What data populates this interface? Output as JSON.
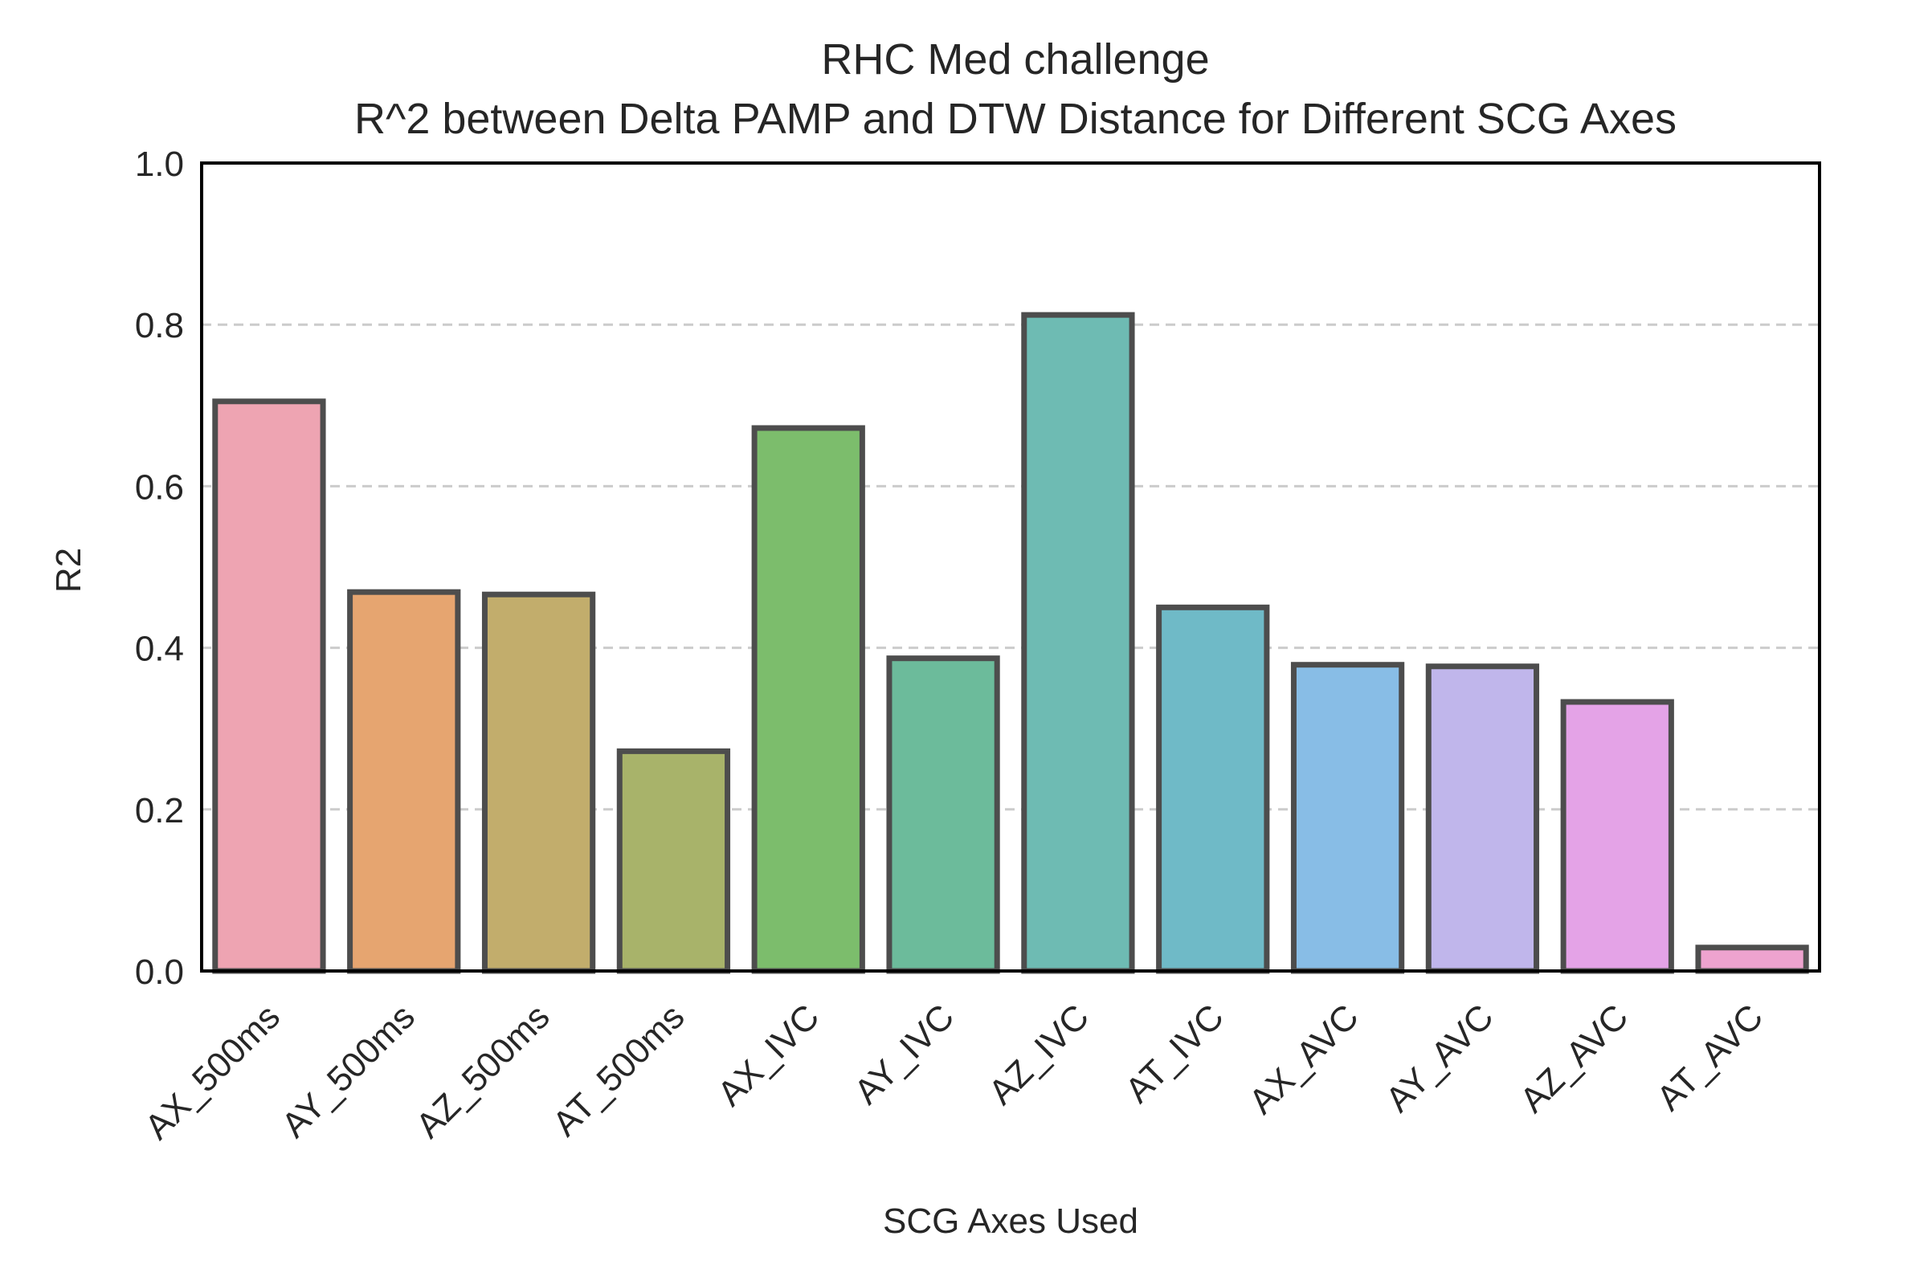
{
  "chart_data": {
    "type": "bar",
    "title": "RHC Med challenge",
    "subtitle": "R^2 between Delta PAMP and DTW Distance for Different SCG Axes",
    "xlabel": "SCG Axes Used",
    "ylabel": "R2",
    "ylim": [
      0,
      1.0
    ],
    "yticks": [
      "0.0",
      "0.2",
      "0.4",
      "0.6",
      "0.8",
      "1.0"
    ],
    "grid": "horizontal dashed",
    "categories": [
      "AX_500ms",
      "AY_500ms",
      "AZ_500ms",
      "AT_500ms",
      "AX_IVC",
      "AY_IVC",
      "AZ_IVC",
      "AT_IVC",
      "AX_AVC",
      "AY_AVC",
      "AZ_AVC",
      "AT_AVC"
    ],
    "values": [
      0.705,
      0.469,
      0.466,
      0.272,
      0.672,
      0.387,
      0.812,
      0.45,
      0.379,
      0.377,
      0.333,
      0.029
    ],
    "colors": [
      "#eea4b2",
      "#e6a570",
      "#c2ad6c",
      "#a8b36a",
      "#7cbd6c",
      "#6cbb9b",
      "#6ebbb3",
      "#6fbac7",
      "#88bde6",
      "#c0b6eb",
      "#e4a3e7",
      "#eea3cf"
    ]
  }
}
